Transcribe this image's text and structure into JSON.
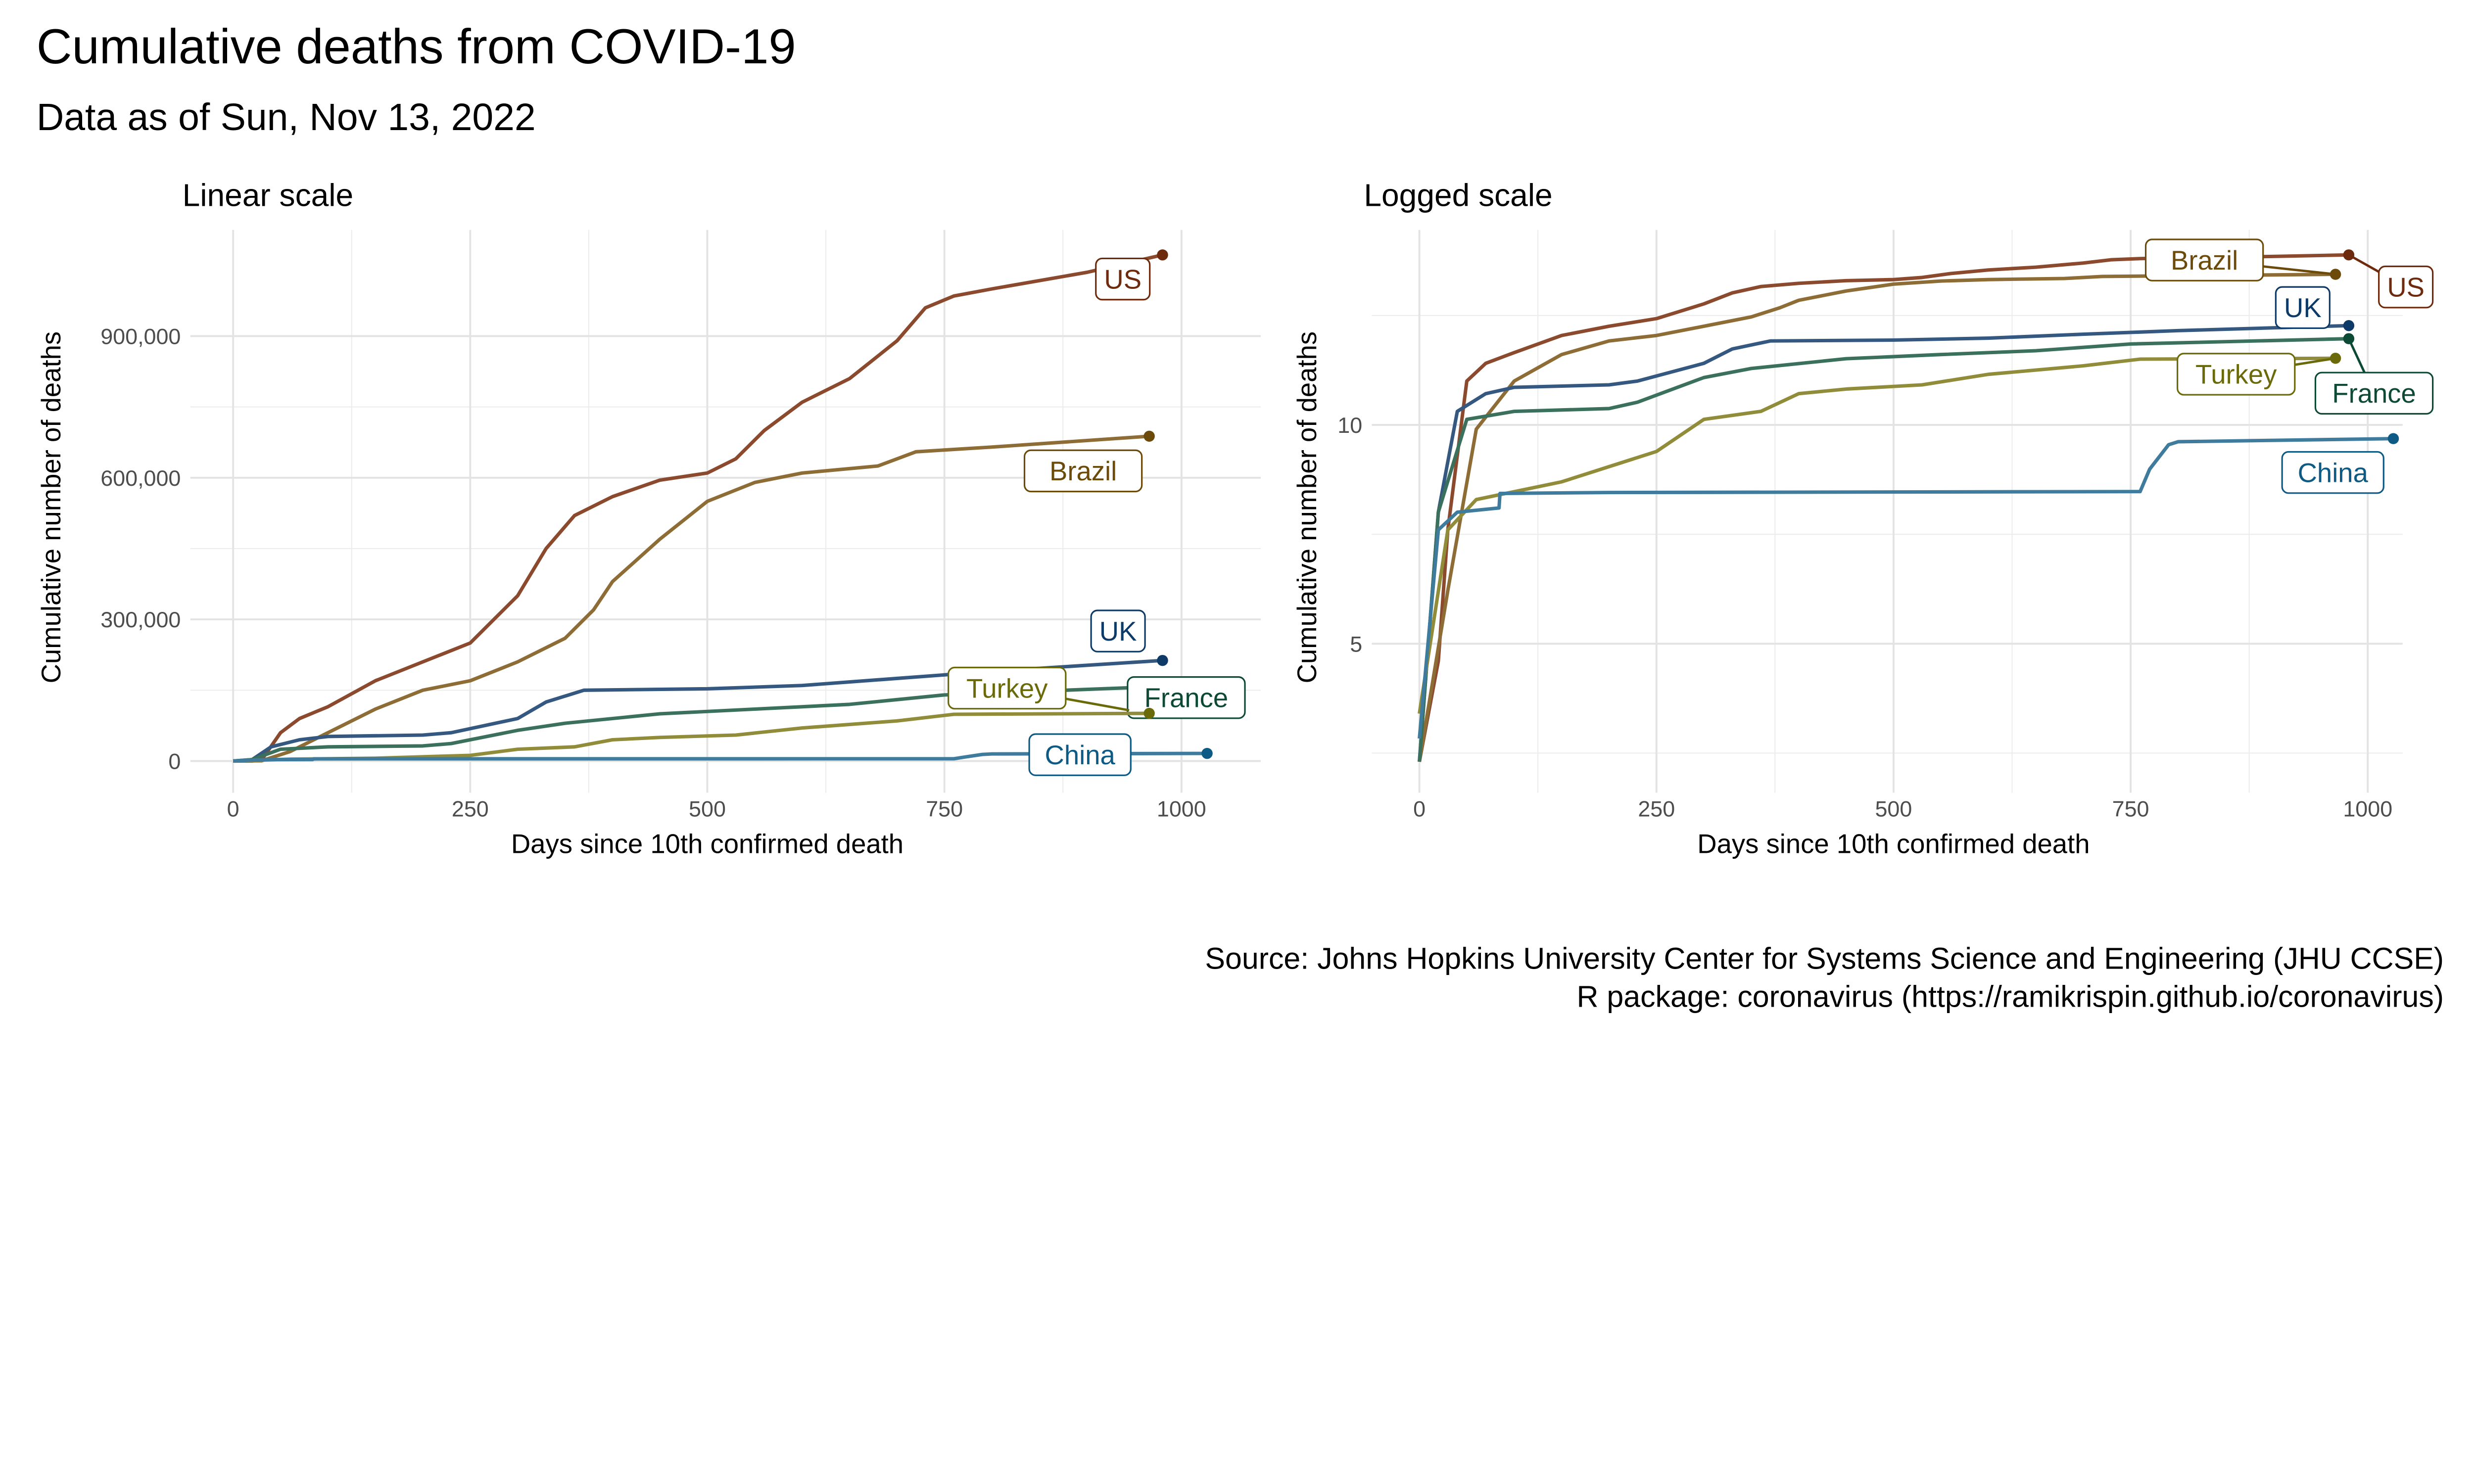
{
  "title": "Cumulative deaths from COVID-19",
  "subtitle": "Data as of Sun, Nov 13, 2022",
  "caption": [
    "Source: Johns Hopkins University Center for Systems Science and Engineering (JHU CCSE)",
    "R package: coronavirus (https://ramikrispin.github.io/coronavirus)"
  ],
  "chart_data": [
    {
      "type": "line",
      "title": "Linear scale",
      "xlabel": "Days since 10th confirmed death",
      "ylabel": "Cumulative number of deaths",
      "xlim": [
        0,
        1000
      ],
      "ylim": [
        0,
        1100000
      ],
      "x_ticks": [
        "0",
        "250",
        "500",
        "750",
        "1000"
      ],
      "y_ticks": [
        "0",
        "300,000",
        "600,000",
        "900,000"
      ],
      "y_tick_values": [
        0,
        300000,
        600000,
        900000
      ],
      "scale": "linear",
      "grid": true,
      "legend": "direct labels"
    },
    {
      "type": "line",
      "title": "Logged scale",
      "xlabel": "Days since 10th confirmed death",
      "ylabel": "Cumulative number of deaths",
      "xlim": [
        0,
        1000
      ],
      "ylim": [
        2.5,
        14
      ],
      "x_ticks": [
        "0",
        "250",
        "500",
        "750",
        "1000"
      ],
      "y_ticks": [
        "5",
        "10"
      ],
      "y_tick_values": [
        5,
        10
      ],
      "scale": "natural log of deaths",
      "grid": true,
      "legend": "direct labels"
    }
  ],
  "series": [
    {
      "name": "US",
      "color": "#8b4a2e",
      "label_color": "#6e2a0c",
      "points": [
        [
          0,
          10
        ],
        [
          20,
          100
        ],
        [
          30,
          2000
        ],
        [
          50,
          60000
        ],
        [
          70,
          90000
        ],
        [
          100,
          115000
        ],
        [
          150,
          170000
        ],
        [
          200,
          210000
        ],
        [
          250,
          250000
        ],
        [
          300,
          350000
        ],
        [
          330,
          450000
        ],
        [
          360,
          520000
        ],
        [
          400,
          560000
        ],
        [
          450,
          595000
        ],
        [
          500,
          610000
        ],
        [
          530,
          640000
        ],
        [
          560,
          700000
        ],
        [
          600,
          760000
        ],
        [
          650,
          810000
        ],
        [
          700,
          890000
        ],
        [
          730,
          960000
        ],
        [
          760,
          985000
        ],
        [
          800,
          1000000
        ],
        [
          900,
          1035000
        ],
        [
          980,
          1072000
        ]
      ]
    },
    {
      "name": "Brazil",
      "color": "#8e6c36",
      "label_color": "#6b4a0a",
      "points": [
        [
          0,
          10
        ],
        [
          30,
          500
        ],
        [
          60,
          20000
        ],
        [
          100,
          60000
        ],
        [
          150,
          110000
        ],
        [
          200,
          150000
        ],
        [
          250,
          170000
        ],
        [
          300,
          210000
        ],
        [
          350,
          260000
        ],
        [
          380,
          320000
        ],
        [
          400,
          380000
        ],
        [
          450,
          470000
        ],
        [
          500,
          550000
        ],
        [
          550,
          590000
        ],
        [
          600,
          610000
        ],
        [
          680,
          625000
        ],
        [
          720,
          655000
        ],
        [
          800,
          665000
        ],
        [
          966,
          688000
        ]
      ]
    },
    {
      "name": "UK",
      "color": "#34587f",
      "label_color": "#0d3a66",
      "points": [
        [
          0,
          10
        ],
        [
          20,
          3000
        ],
        [
          40,
          30000
        ],
        [
          70,
          45000
        ],
        [
          100,
          52000
        ],
        [
          200,
          55000
        ],
        [
          230,
          60000
        ],
        [
          300,
          90000
        ],
        [
          330,
          125000
        ],
        [
          370,
          150000
        ],
        [
          500,
          153000
        ],
        [
          600,
          160000
        ],
        [
          700,
          175000
        ],
        [
          800,
          190000
        ],
        [
          980,
          213000
        ]
      ]
    },
    {
      "name": "France",
      "color": "#3a705c",
      "label_color": "#0d4a35",
      "points": [
        [
          0,
          10
        ],
        [
          20,
          3000
        ],
        [
          50,
          25000
        ],
        [
          100,
          30000
        ],
        [
          200,
          32000
        ],
        [
          230,
          37000
        ],
        [
          300,
          65000
        ],
        [
          350,
          80000
        ],
        [
          450,
          100000
        ],
        [
          550,
          110000
        ],
        [
          650,
          120000
        ],
        [
          750,
          140000
        ],
        [
          980,
          158000
        ]
      ]
    },
    {
      "name": "Turkey",
      "color": "#918c3a",
      "label_color": "#6b6a0a",
      "points": [
        [
          0,
          30
        ],
        [
          30,
          2000
        ],
        [
          60,
          4000
        ],
        [
          150,
          6000
        ],
        [
          250,
          12000
        ],
        [
          300,
          25000
        ],
        [
          360,
          30000
        ],
        [
          400,
          45000
        ],
        [
          450,
          50000
        ],
        [
          530,
          55000
        ],
        [
          600,
          70000
        ],
        [
          700,
          85000
        ],
        [
          760,
          99000
        ],
        [
          966,
          101000
        ]
      ]
    },
    {
      "name": "China",
      "color": "#3e7b9c",
      "label_color": "#0d5a85",
      "points": [
        [
          0,
          17
        ],
        [
          20,
          2000
        ],
        [
          40,
          3000
        ],
        [
          84,
          3300
        ],
        [
          85,
          4600
        ],
        [
          200,
          4700
        ],
        [
          760,
          4800
        ],
        [
          770,
          8000
        ],
        [
          790,
          14000
        ],
        [
          800,
          15000
        ],
        [
          1027,
          16100
        ]
      ]
    }
  ]
}
